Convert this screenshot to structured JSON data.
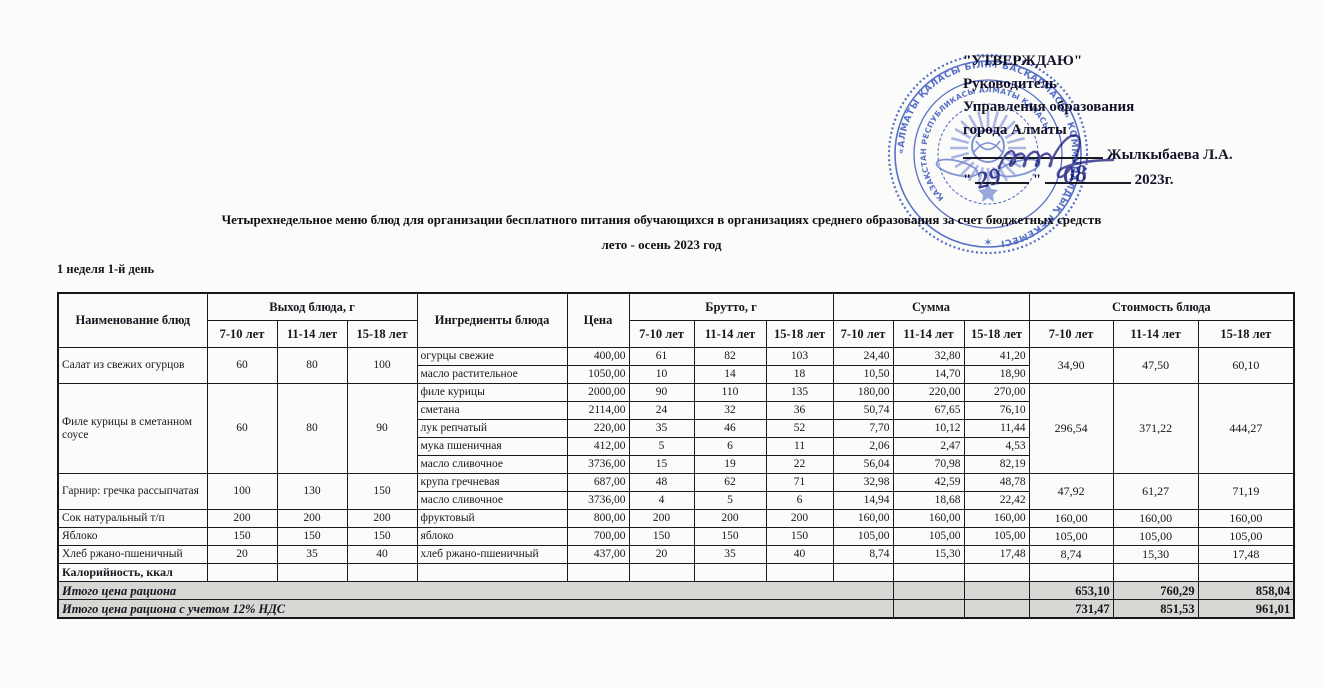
{
  "approval": {
    "line1": "\"УТВЕРЖДАЮ\"",
    "line2": "Руководитель",
    "line3": "Управления образования",
    "line4": "города Алматы",
    "signer": "Жылкыбаева Л.А.",
    "date_quote_open": "\"",
    "date_quote_close": "\"",
    "handwritten_day": "29",
    "handwritten_month": "08",
    "date_year": "2023г."
  },
  "stamp": {
    "outer_text": "«АЛМАТЫ ҚАЛАСЫ БІЛІМ БАСҚАРМАСЫ» КОММУНАЛДЫҚ МЕКЕМЕСІ",
    "inner_text": "ҚАЗАҚСТАН РЕСПУБЛИКАСЫ АЛМАТЫ ҚАЛАСЫ",
    "star": "✶"
  },
  "title": {
    "line1": "Четырехнедельное меню блюд для организации бесплатного питания обучающихся в организациях среднего образования за счет бюджетных средств",
    "line2": "лето - осень 2023 год"
  },
  "section_label": "1 неделя 1-й день",
  "colors": {
    "stamp-blue": "#4a66c8",
    "ink-blue": "#3e4094",
    "total-bg": "#d7d7d4"
  },
  "table": {
    "col_headers": {
      "name": "Наименование блюд",
      "out_group": "Выход блюда, г",
      "ingredients": "Ингредиенты блюда",
      "price": "Цена",
      "brutto_group": "Брутто, г",
      "sum_group": "Сумма",
      "cost_group": "Стоимость блюда",
      "ages": [
        "7-10 лет",
        "11-14 лет",
        "15-18 лет"
      ]
    },
    "dishes": [
      {
        "name": "Салат из свежих огурцов",
        "out": [
          "60",
          "80",
          "100"
        ],
        "cost": [
          "34,90",
          "47,50",
          "60,10"
        ],
        "ingredients": [
          {
            "name": "огурцы свежие",
            "price": "400,00",
            "brutto": [
              "61",
              "82",
              "103"
            ],
            "sum": [
              "24,40",
              "32,80",
              "41,20"
            ]
          },
          {
            "name": "масло растительное",
            "price": "1050,00",
            "brutto": [
              "10",
              "14",
              "18"
            ],
            "sum": [
              "10,50",
              "14,70",
              "18,90"
            ]
          }
        ]
      },
      {
        "name": "Филе курицы в сметанном соусе",
        "out": [
          "60",
          "80",
          "90"
        ],
        "cost": [
          "296,54",
          "371,22",
          "444,27"
        ],
        "ingredients": [
          {
            "name": "филе курицы",
            "price": "2000,00",
            "brutto": [
              "90",
              "110",
              "135"
            ],
            "sum": [
              "180,00",
              "220,00",
              "270,00"
            ]
          },
          {
            "name": "сметана",
            "price": "2114,00",
            "brutto": [
              "24",
              "32",
              "36"
            ],
            "sum": [
              "50,74",
              "67,65",
              "76,10"
            ]
          },
          {
            "name": "лук репчатый",
            "price": "220,00",
            "brutto": [
              "35",
              "46",
              "52"
            ],
            "sum": [
              "7,70",
              "10,12",
              "11,44"
            ]
          },
          {
            "name": "мука пшеничная",
            "price": "412,00",
            "brutto": [
              "5",
              "6",
              "11"
            ],
            "sum": [
              "2,06",
              "2,47",
              "4,53"
            ]
          },
          {
            "name": "масло сливочное",
            "price": "3736,00",
            "brutto": [
              "15",
              "19",
              "22"
            ],
            "sum": [
              "56,04",
              "70,98",
              "82,19"
            ]
          }
        ]
      },
      {
        "name": "Гарнир: гречка рассыпчатая",
        "out": [
          "100",
          "130",
          "150"
        ],
        "cost": [
          "47,92",
          "61,27",
          "71,19"
        ],
        "ingredients": [
          {
            "name": "крупа гречневая",
            "price": "687,00",
            "brutto": [
              "48",
              "62",
              "71"
            ],
            "sum": [
              "32,98",
              "42,59",
              "48,78"
            ]
          },
          {
            "name": "масло сливочное",
            "price": "3736,00",
            "brutto": [
              "4",
              "5",
              "6"
            ],
            "sum": [
              "14,94",
              "18,68",
              "22,42"
            ]
          }
        ]
      },
      {
        "name": "Сок натуральный т/п",
        "out": [
          "200",
          "200",
          "200"
        ],
        "cost": [
          "160,00",
          "160,00",
          "160,00"
        ],
        "ingredients": [
          {
            "name": "фруктовый",
            "price": "800,00",
            "brutto": [
              "200",
              "200",
              "200"
            ],
            "sum": [
              "160,00",
              "160,00",
              "160,00"
            ]
          }
        ]
      },
      {
        "name": "Яблоко",
        "out": [
          "150",
          "150",
          "150"
        ],
        "cost": [
          "105,00",
          "105,00",
          "105,00"
        ],
        "ingredients": [
          {
            "name": "яблоко",
            "price": "700,00",
            "brutto": [
              "150",
              "150",
              "150"
            ],
            "sum": [
              "105,00",
              "105,00",
              "105,00"
            ]
          }
        ]
      },
      {
        "name": "Хлеб ржано-пшеничный",
        "out": [
          "20",
          "35",
          "40"
        ],
        "cost": [
          "8,74",
          "15,30",
          "17,48"
        ],
        "ingredients": [
          {
            "name": "хлеб ржано-пшеничный",
            "price": "437,00",
            "brutto": [
              "20",
              "35",
              "40"
            ],
            "sum": [
              "8,74",
              "15,30",
              "17,48"
            ]
          }
        ]
      }
    ],
    "calories_row_label": "Калорийность, ккал",
    "totals": [
      {
        "label": "Итого цена рациона",
        "values": [
          "653,10",
          "760,29",
          "858,04"
        ]
      },
      {
        "label": "Итого цена рациона с учетом 12% НДС",
        "values": [
          "731,47",
          "851,53",
          "961,01"
        ]
      }
    ]
  }
}
